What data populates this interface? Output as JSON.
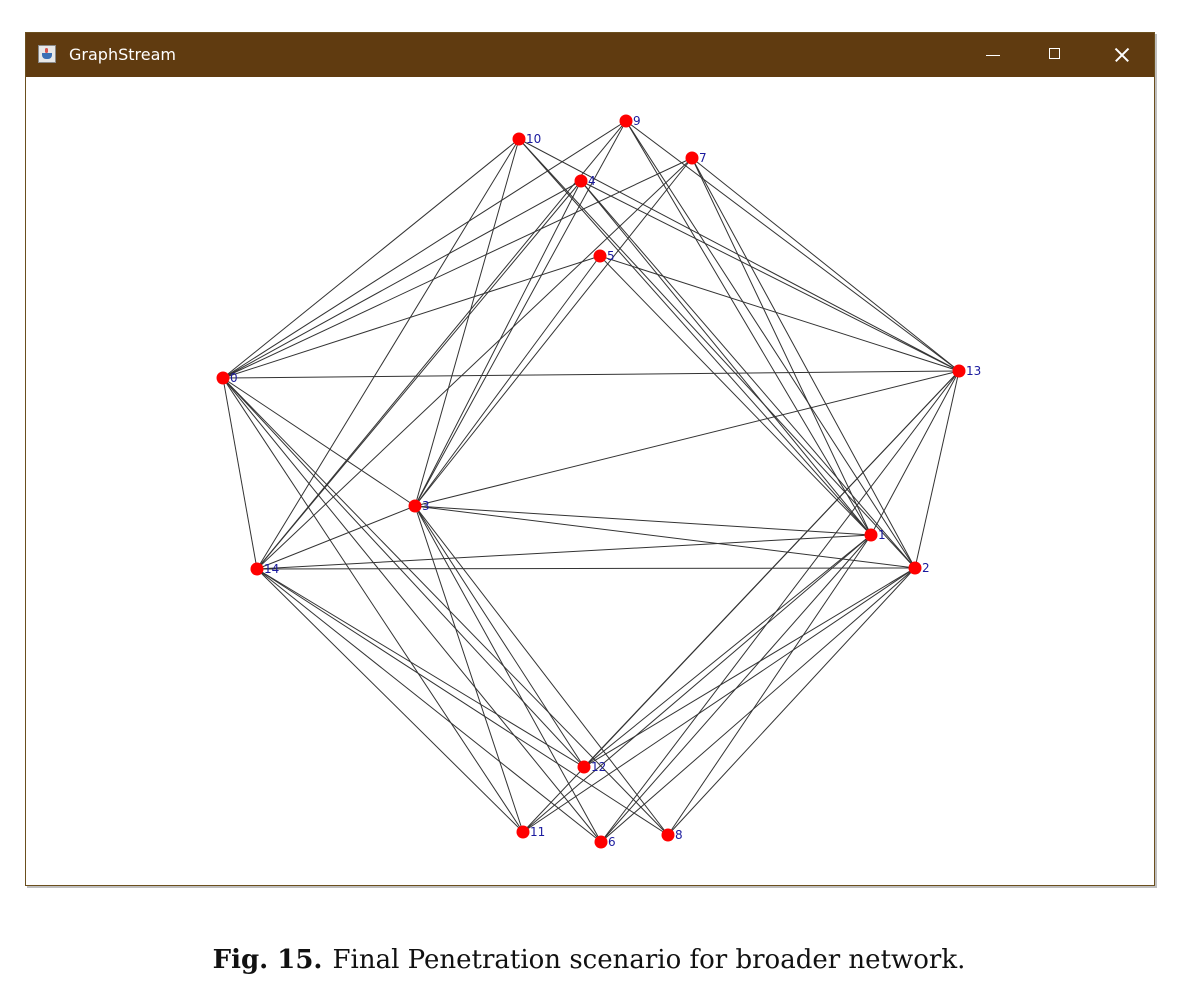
{
  "window": {
    "title": "GraphStream",
    "app_icon": "java-cup-icon",
    "controls": {
      "minimize_icon": "minimize-icon",
      "maximize_icon": "maximize-icon",
      "close_icon": "close-icon"
    }
  },
  "graph": {
    "node_color": "#ff0000",
    "label_color": "#1a1a9e",
    "edge_color": "#333333",
    "nodes": [
      {
        "id": "10",
        "label": "10"
      },
      {
        "id": "9",
        "label": "9"
      },
      {
        "id": "7",
        "label": "7"
      },
      {
        "id": "4",
        "label": "4"
      },
      {
        "id": "5",
        "label": "5"
      },
      {
        "id": "0",
        "label": "0"
      },
      {
        "id": "13",
        "label": "13"
      },
      {
        "id": "3",
        "label": "3"
      },
      {
        "id": "1",
        "label": "1"
      },
      {
        "id": "2",
        "label": "2"
      },
      {
        "id": "14",
        "label": "14"
      },
      {
        "id": "12",
        "label": "12"
      },
      {
        "id": "11",
        "label": "11"
      },
      {
        "id": "6",
        "label": "6"
      },
      {
        "id": "8",
        "label": "8"
      }
    ],
    "edges": [
      [
        "0",
        "10"
      ],
      [
        "0",
        "9"
      ],
      [
        "0",
        "7"
      ],
      [
        "0",
        "4"
      ],
      [
        "0",
        "5"
      ],
      [
        "0",
        "13"
      ],
      [
        "0",
        "14"
      ],
      [
        "0",
        "12"
      ],
      [
        "0",
        "11"
      ],
      [
        "0",
        "6"
      ],
      [
        "0",
        "8"
      ],
      [
        "0",
        "3"
      ],
      [
        "14",
        "10"
      ],
      [
        "14",
        "9"
      ],
      [
        "14",
        "7"
      ],
      [
        "14",
        "4"
      ],
      [
        "14",
        "3"
      ],
      [
        "14",
        "1"
      ],
      [
        "14",
        "2"
      ],
      [
        "14",
        "12"
      ],
      [
        "14",
        "11"
      ],
      [
        "14",
        "6"
      ],
      [
        "14",
        "8"
      ],
      [
        "3",
        "10"
      ],
      [
        "3",
        "9"
      ],
      [
        "3",
        "7"
      ],
      [
        "3",
        "4"
      ],
      [
        "3",
        "5"
      ],
      [
        "3",
        "13"
      ],
      [
        "3",
        "1"
      ],
      [
        "3",
        "2"
      ],
      [
        "3",
        "12"
      ],
      [
        "3",
        "11"
      ],
      [
        "3",
        "6"
      ],
      [
        "3",
        "8"
      ],
      [
        "1",
        "10"
      ],
      [
        "1",
        "9"
      ],
      [
        "1",
        "7"
      ],
      [
        "1",
        "4"
      ],
      [
        "1",
        "5"
      ],
      [
        "1",
        "13"
      ],
      [
        "1",
        "12"
      ],
      [
        "1",
        "11"
      ],
      [
        "1",
        "6"
      ],
      [
        "1",
        "8"
      ],
      [
        "2",
        "10"
      ],
      [
        "2",
        "9"
      ],
      [
        "2",
        "7"
      ],
      [
        "2",
        "4"
      ],
      [
        "2",
        "13"
      ],
      [
        "2",
        "12"
      ],
      [
        "2",
        "11"
      ],
      [
        "2",
        "6"
      ],
      [
        "2",
        "8"
      ],
      [
        "13",
        "10"
      ],
      [
        "13",
        "9"
      ],
      [
        "13",
        "7"
      ],
      [
        "13",
        "4"
      ],
      [
        "13",
        "5"
      ],
      [
        "13",
        "12"
      ],
      [
        "13",
        "11"
      ],
      [
        "13",
        "6"
      ]
    ]
  },
  "caption": {
    "label": "Fig. 15.",
    "text": "Final Penetration scenario for broader network."
  }
}
